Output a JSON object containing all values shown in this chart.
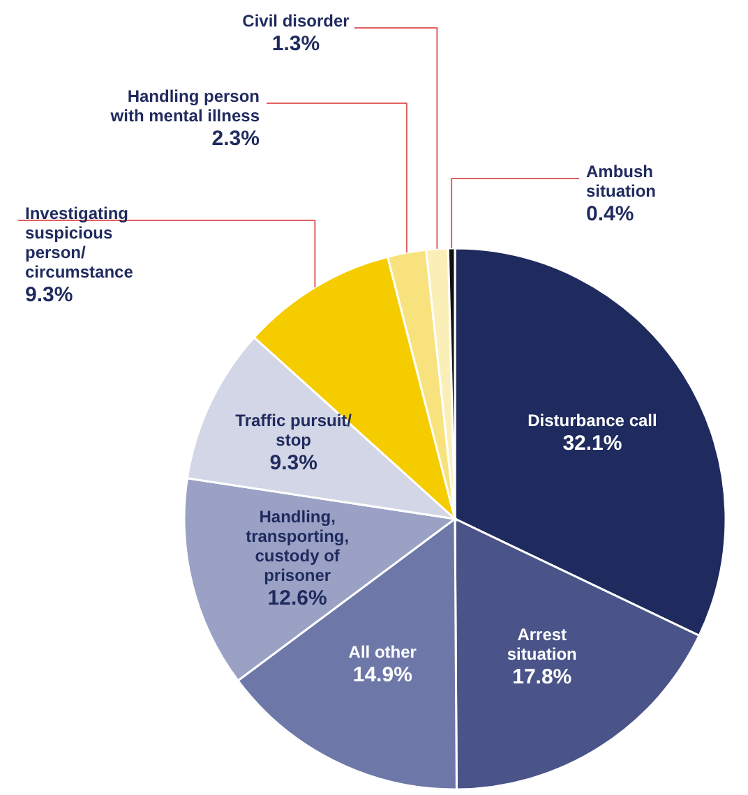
{
  "chart_data": {
    "type": "pie",
    "categories": [
      "Disturbance call",
      "Arrest\nsituation",
      "All other",
      "Handling,\ntransporting,\ncustody of\nprisoner",
      "Traffic pursuit/\nstop",
      "Investigating\nsuspicious\nperson/\ncircumstance",
      "Handling person\nwith mental illness",
      "Civil disorder",
      "Ambush\nsituation"
    ],
    "values": [
      32.1,
      17.8,
      14.9,
      12.6,
      9.3,
      9.3,
      2.3,
      1.3,
      0.4
    ],
    "value_labels": [
      "32.1%",
      "17.8%",
      "14.9%",
      "12.6%",
      "9.3%",
      "9.3%",
      "2.3%",
      "1.3%",
      "0.4%"
    ],
    "colors": [
      "#1f2a5e",
      "#4a5488",
      "#6e78a8",
      "#9aa1c4",
      "#d3d6e6",
      "#f5cc00",
      "#f8e27e",
      "#fbefb8",
      "#111111"
    ]
  }
}
